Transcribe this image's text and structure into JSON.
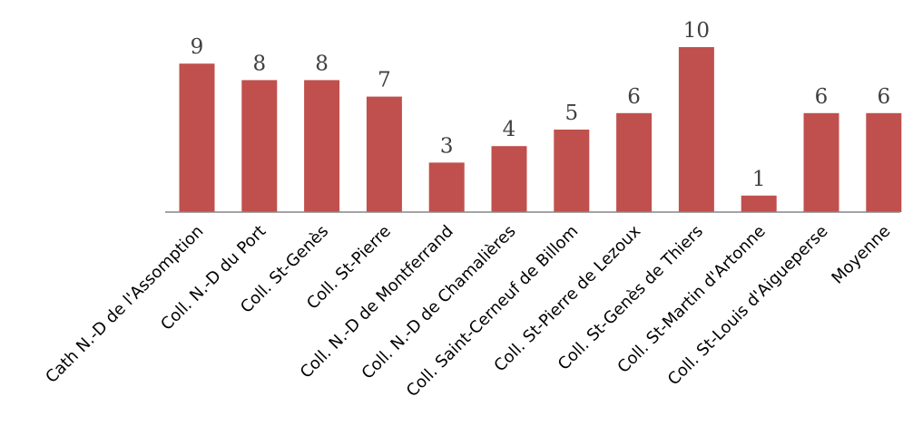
{
  "chart_data": {
    "type": "bar",
    "title": "",
    "xlabel": "",
    "ylabel": "",
    "categories": [
      "Cath N.-D de l'Assomption",
      "Coll. N.-D du Port",
      "Coll. St-Genès",
      "Coll. St-Pierre",
      "Coll. N.-D de Montferrand",
      "Coll. N.-D de Chamalières",
      "Coll. Saint-Cerneuf de Billom",
      "Coll. St-Pierre de Lezoux",
      "Coll. St-Genès de Thiers",
      "Coll. St-Martin d'Artonne",
      "Coll. St-Louis d'Aigueperse",
      "Moyenne"
    ],
    "values": [
      9,
      8,
      8,
      7,
      3,
      4,
      5,
      6,
      10,
      1,
      6,
      6
    ],
    "ylim": [
      0,
      10
    ],
    "grid": false,
    "legend": "none",
    "bar_color": "#c0504d",
    "data_labels": true
  }
}
